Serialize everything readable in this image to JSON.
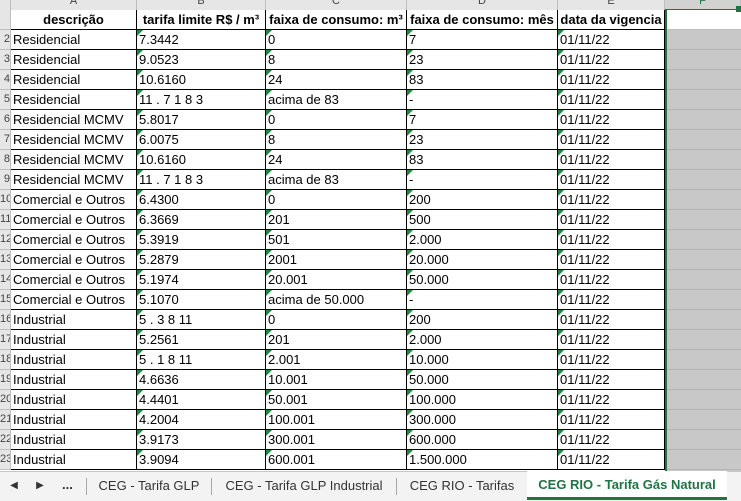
{
  "columns": [
    "A",
    "B",
    "C",
    "D",
    "E",
    "F"
  ],
  "headers": [
    "descrição",
    "tarifa limite R$ / m³",
    "faixa de consumo: m³",
    "faixa de consumo: mês",
    "data da vigencia"
  ],
  "rows": [
    {
      "n": "2",
      "cells": [
        "Residencial",
        "7.3442",
        "0",
        "7",
        "01/11/22"
      ]
    },
    {
      "n": "3",
      "cells": [
        "Residencial",
        "9.0523",
        "8",
        "23",
        "01/11/22"
      ]
    },
    {
      "n": "4",
      "cells": [
        "Residencial",
        "10.6160",
        "24",
        "83",
        "01/11/22"
      ]
    },
    {
      "n": "5",
      "cells": [
        "Residencial",
        "11 . 7 1 8 3",
        "acima de 83",
        "-",
        "01/11/22"
      ]
    },
    {
      "n": "6",
      "cells": [
        "Residencial MCMV",
        "5.8017",
        "0",
        "7",
        "01/11/22"
      ]
    },
    {
      "n": "7",
      "cells": [
        "Residencial MCMV",
        "6.0075",
        "8",
        "23",
        "01/11/22"
      ]
    },
    {
      "n": "8",
      "cells": [
        "Residencial MCMV",
        "10.6160",
        "24",
        "83",
        "01/11/22"
      ]
    },
    {
      "n": "9",
      "cells": [
        "Residencial MCMV",
        "11 . 7 1 8 3",
        "acima de 83",
        "-",
        "01/11/22"
      ]
    },
    {
      "n": "10",
      "cells": [
        "Comercial e Outros",
        "6.4300",
        "0",
        "200",
        "01/11/22"
      ]
    },
    {
      "n": "11",
      "cells": [
        "Comercial e Outros",
        "6.3669",
        "201",
        "500",
        "01/11/22"
      ]
    },
    {
      "n": "12",
      "cells": [
        "Comercial e Outros",
        "5.3919",
        "501",
        "2.000",
        "01/11/22"
      ]
    },
    {
      "n": "13",
      "cells": [
        "Comercial e Outros",
        "5.2879",
        "2001",
        "20.000",
        "01/11/22"
      ]
    },
    {
      "n": "14",
      "cells": [
        "Comercial e Outros",
        "5.1974",
        "20.001",
        "50.000",
        "01/11/22"
      ]
    },
    {
      "n": "15",
      "cells": [
        "Comercial e Outros",
        "5.1070",
        "acima de 50.000",
        "-",
        "01/11/22"
      ]
    },
    {
      "n": "16",
      "cells": [
        "Industrial",
        "5 . 3 8 11",
        "0",
        "200",
        "01/11/22"
      ]
    },
    {
      "n": "17",
      "cells": [
        "Industrial",
        "5.2561",
        "201",
        "2.000",
        "01/11/22"
      ]
    },
    {
      "n": "18",
      "cells": [
        "Industrial",
        "5 . 1 8 11",
        "2.001",
        "10.000",
        "01/11/22"
      ]
    },
    {
      "n": "19",
      "cells": [
        "Industrial",
        "4.6636",
        "10.001",
        "50.000",
        "01/11/22"
      ]
    },
    {
      "n": "20",
      "cells": [
        "Industrial",
        "4.4401",
        "50.001",
        "100.000",
        "01/11/22"
      ]
    },
    {
      "n": "21",
      "cells": [
        "Industrial",
        "4.2004",
        "100.001",
        "300.000",
        "01/11/22"
      ]
    },
    {
      "n": "22",
      "cells": [
        "Industrial",
        "3.9173",
        "300.001",
        "600.000",
        "01/11/22"
      ]
    },
    {
      "n": "23",
      "cells": [
        "Industrial",
        "3.9094",
        "600.001",
        "1.500.000",
        "01/11/22"
      ]
    }
  ],
  "tabbar": {
    "prev_icon": "triangle-left-icon",
    "next_icon": "triangle-right-icon",
    "ellipsis": "...",
    "tabs": [
      "CEG - Tarifa GLP",
      "CEG - Tarifa GLP Industrial",
      "CEG RIO - Tarifas",
      "CEG RIO - Tarifa Gás Natural"
    ],
    "active_tab": 3
  },
  "colors": {
    "accent": "#217346",
    "marker": "#1f8a3a",
    "selected_column": "#c8c8c8"
  }
}
